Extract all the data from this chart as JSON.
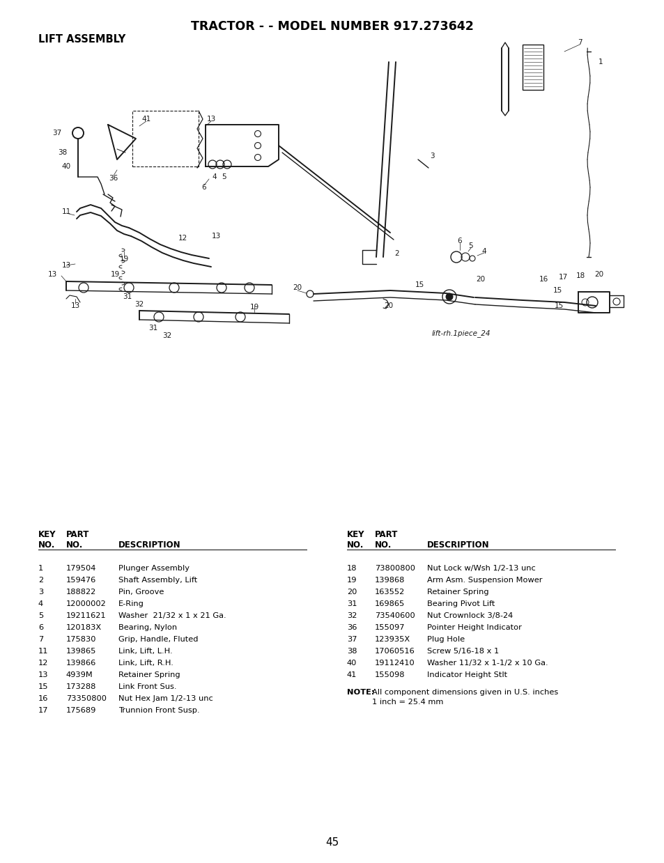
{
  "title": "TRACTOR - - MODEL NUMBER 917.273642",
  "subtitle": "LIFT ASSEMBLY",
  "bg_color": "#ffffff",
  "page_number": "45",
  "diagram_label": "lift-rh.1piece_24",
  "left_table": {
    "rows": [
      [
        "1",
        "179504",
        "Plunger Assembly"
      ],
      [
        "2",
        "159476",
        "Shaft Assembly, Lift"
      ],
      [
        "3",
        "188822",
        "Pin, Groove"
      ],
      [
        "4",
        "12000002",
        "E-Ring"
      ],
      [
        "5",
        "19211621",
        "Washer  21/32 x 1 x 21 Ga."
      ],
      [
        "6",
        "120183X",
        "Bearing, Nylon"
      ],
      [
        "7",
        "175830",
        "Grip, Handle, Fluted"
      ],
      [
        "11",
        "139865",
        "Link, Lift, L.H."
      ],
      [
        "12",
        "139866",
        "Link, Lift, R.H."
      ],
      [
        "13",
        "4939M",
        "Retainer Spring"
      ],
      [
        "15",
        "173288",
        "Link Front Sus."
      ],
      [
        "16",
        "73350800",
        "Nut Hex Jam 1/2-13 unc"
      ],
      [
        "17",
        "175689",
        "Trunnion Front Susp."
      ]
    ]
  },
  "right_table": {
    "rows": [
      [
        "18",
        "73800800",
        "Nut Lock w/Wsh 1/2-13 unc"
      ],
      [
        "19",
        "139868",
        "Arm Asm. Suspension Mower"
      ],
      [
        "20",
        "163552",
        "Retainer Spring"
      ],
      [
        "31",
        "169865",
        "Bearing Pivot Lift"
      ],
      [
        "32",
        "73540600",
        "Nut Crownlock 3/8-24"
      ],
      [
        "36",
        "155097",
        "Pointer Height Indicator"
      ],
      [
        "37",
        "123935X",
        "Plug Hole"
      ],
      [
        "38",
        "17060516",
        "Screw 5/16-18 x 1"
      ],
      [
        "40",
        "19112410",
        "Washer 11/32 x 1-1/2 x 10 Ga."
      ],
      [
        "41",
        "155098",
        "Indicator Height Stlt"
      ]
    ]
  },
  "note_bold": "NOTE:",
  "note_rest": "  All component dimensions given in U.S. inches\n        1 inch = 25.4 mm"
}
